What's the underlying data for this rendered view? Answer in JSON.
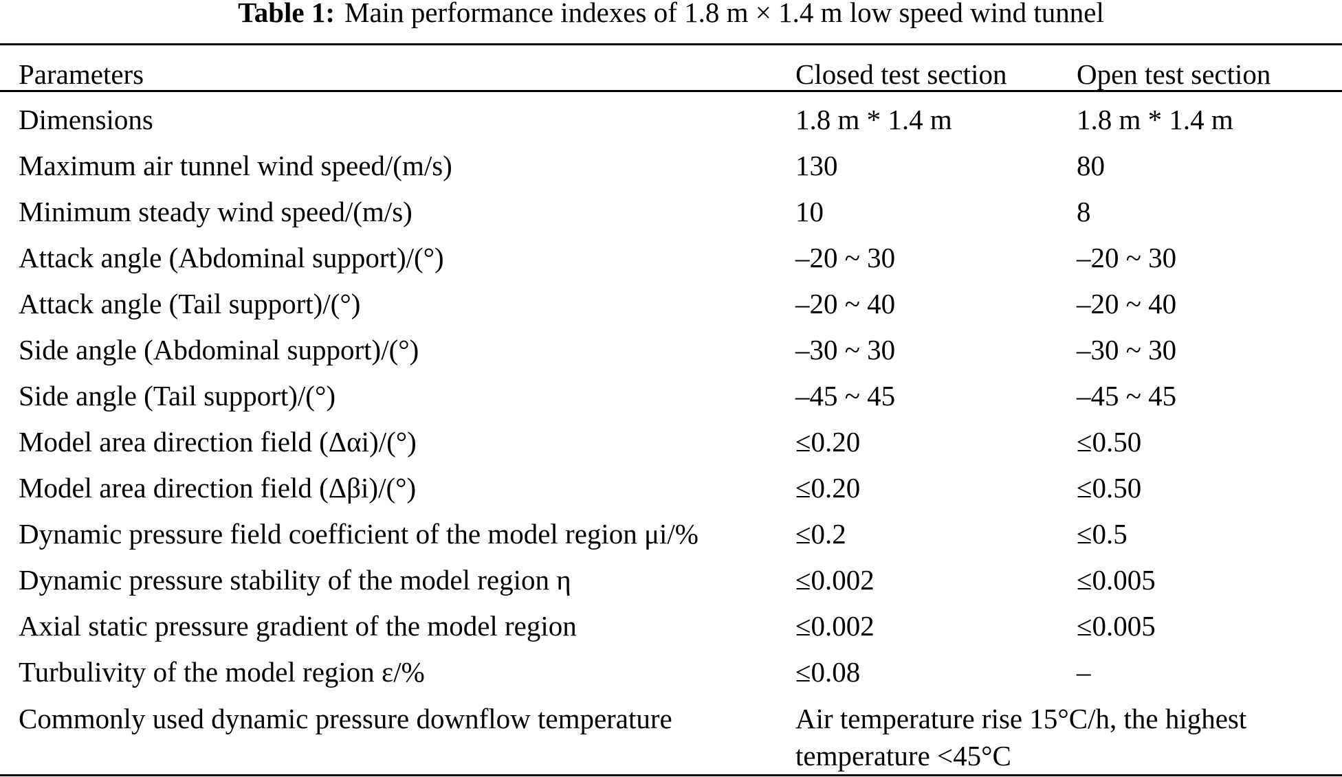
{
  "title": {
    "label": "Table 1:",
    "text": "Main performance indexes of 1.8 m × 1.4 m low speed wind tunnel"
  },
  "headers": [
    "Parameters",
    "Closed test section",
    "Open test section"
  ],
  "rows": [
    [
      "Dimensions",
      "1.8 m * 1.4 m",
      "1.8 m * 1.4 m"
    ],
    [
      "Maximum air tunnel wind speed/(m/s)",
      "130",
      "80"
    ],
    [
      "Minimum steady wind speed/(m/s)",
      "10",
      "8"
    ],
    [
      "Attack angle (Abdominal support)/(°)",
      "–20 ~ 30",
      "–20 ~ 30"
    ],
    [
      "Attack angle (Tail support)/(°)",
      "–20 ~ 40",
      "–20 ~ 40"
    ],
    [
      "Side angle (Abdominal support)/(°)",
      "–30 ~ 30",
      "–30 ~ 30"
    ],
    [
      "Side angle (Tail support)/(°)",
      "–45 ~ 45",
      "–45 ~ 45"
    ],
    [
      "Model area direction field (Δαi)/(°)",
      "≤0.20",
      "≤0.50"
    ],
    [
      "Model area direction field (Δβi)/(°)",
      "≤0.20",
      "≤0.50"
    ],
    [
      "Dynamic pressure field coefficient of the model region μi/%",
      "≤0.2",
      "≤0.5"
    ],
    [
      "Dynamic pressure stability of the model region η",
      "≤0.002",
      "≤0.005"
    ],
    [
      "Axial static pressure gradient of the model region",
      "≤0.002",
      "≤0.005"
    ],
    [
      "Turbulivity of the model region ε/%",
      "≤0.08",
      "–"
    ]
  ],
  "last_row": {
    "parameter": "Commonly used dynamic pressure downflow temperature",
    "value": "Air temperature rise 15°C/h, the highest temperature <45°C"
  }
}
